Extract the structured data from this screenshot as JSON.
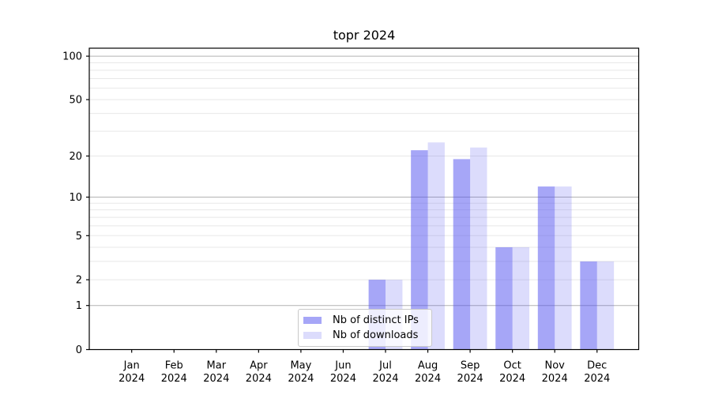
{
  "title": "topr 2024",
  "chart_data": {
    "type": "bar",
    "title": "topr 2024",
    "xlabel": "",
    "ylabel": "",
    "year": "2024",
    "categories": [
      "Jan",
      "Feb",
      "Mar",
      "Apr",
      "May",
      "Jun",
      "Jul",
      "Aug",
      "Sep",
      "Oct",
      "Nov",
      "Dec"
    ],
    "series": [
      {
        "name": "Nb of distinct IPs",
        "color": "rgba(78,78,240,0.5)",
        "values": [
          0,
          0,
          0,
          0,
          0,
          0,
          2,
          22,
          19,
          4,
          12,
          3
        ]
      },
      {
        "name": "Nb of downloads",
        "color": "rgba(78,78,240,0.2)",
        "values": [
          0,
          0,
          0,
          0,
          0,
          0,
          2,
          25,
          23,
          4,
          12,
          3
        ]
      }
    ],
    "yscale": "log1p",
    "ylim": [
      0,
      113.5
    ],
    "y_ticks": [
      0,
      1,
      2,
      5,
      10,
      20,
      50,
      100
    ],
    "y_major_gridlines": [
      1,
      10,
      100
    ],
    "y_minor_gridlines": [
      2,
      3,
      4,
      5,
      6,
      7,
      8,
      9,
      20,
      30,
      40,
      50,
      60,
      70,
      80,
      90
    ],
    "grid": true,
    "legend_position": "bottom-center"
  },
  "colors": {
    "bar_distinct_ips": "rgba(78,78,240,0.5)",
    "bar_downloads": "rgba(78,78,240,0.2)",
    "gridline_major": "#b2b2b2",
    "gridline_minor": "#e8e8e8",
    "axis": "#000000",
    "legend_border": "#c9c9c9",
    "legend_background": "rgba(255,255,255,0.8)"
  }
}
